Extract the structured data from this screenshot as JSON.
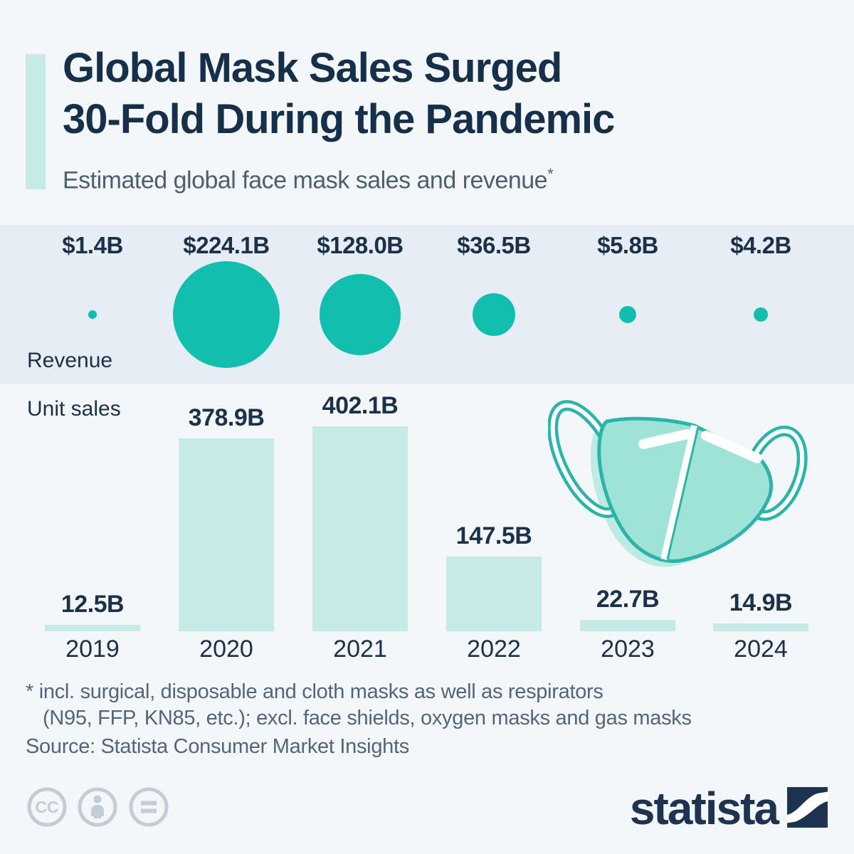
{
  "header": {
    "title_line1": "Global Mask Sales Surged",
    "title_line2": "30-Fold During the Pandemic",
    "subtitle": "Estimated global face mask sales and revenue",
    "footnote_marker": "*"
  },
  "chart_data": {
    "type": "combo",
    "subtype": "bubble-row + bar",
    "categories": [
      "2019",
      "2020",
      "2021",
      "2022",
      "2023",
      "2024"
    ],
    "series": [
      {
        "name": "Revenue",
        "type": "bubble",
        "unit": "USD billions",
        "values": [
          1.4,
          224.1,
          128.0,
          36.5,
          5.8,
          4.2
        ],
        "labels": [
          "$1.4B",
          "$224.1B",
          "$128.0B",
          "$36.5B",
          "$5.8B",
          "$4.2B"
        ],
        "color": "#12bfae"
      },
      {
        "name": "Unit sales",
        "type": "bar",
        "unit": "billions of masks",
        "values": [
          12.5,
          378.9,
          402.1,
          147.5,
          22.7,
          14.9
        ],
        "labels": [
          "12.5B",
          "378.9B",
          "402.1B",
          "147.5B",
          "22.7B",
          "14.9B"
        ],
        "color": "#c6eae5"
      }
    ],
    "title": "Global Mask Sales Surged 30-Fold During the Pandemic",
    "xlabel": "Year",
    "ylabel": "",
    "legend": {
      "revenue_label": "Revenue",
      "unit_sales_label": "Unit sales"
    },
    "grid": false
  },
  "footnote": {
    "line1": "* incl. surgical, disposable and cloth masks as well as respirators",
    "line2": "(N95, FFP, KN85, etc.); excl. face shields, oxygen masks and gas masks",
    "source": "Source: Statista Consumer Market Insights"
  },
  "footer": {
    "cc_text": "CC",
    "license_icons": [
      "cc-icon",
      "attribution-person-icon",
      "equals-icon"
    ],
    "brand": "statista"
  },
  "colors": {
    "background": "#f3f7fa",
    "band_background": "#e7edf4",
    "teal": "#12bfae",
    "mint": "#c6eae5",
    "navy": "#16304a",
    "subtitle_gray": "#4c5f71",
    "footnote_gray": "#53657a",
    "icon_gray": "#c3ccd7",
    "mask_fill": "#9fe2d8",
    "mask_outline": "#2ab5a8",
    "mask_shadow": "#bdebe3"
  }
}
